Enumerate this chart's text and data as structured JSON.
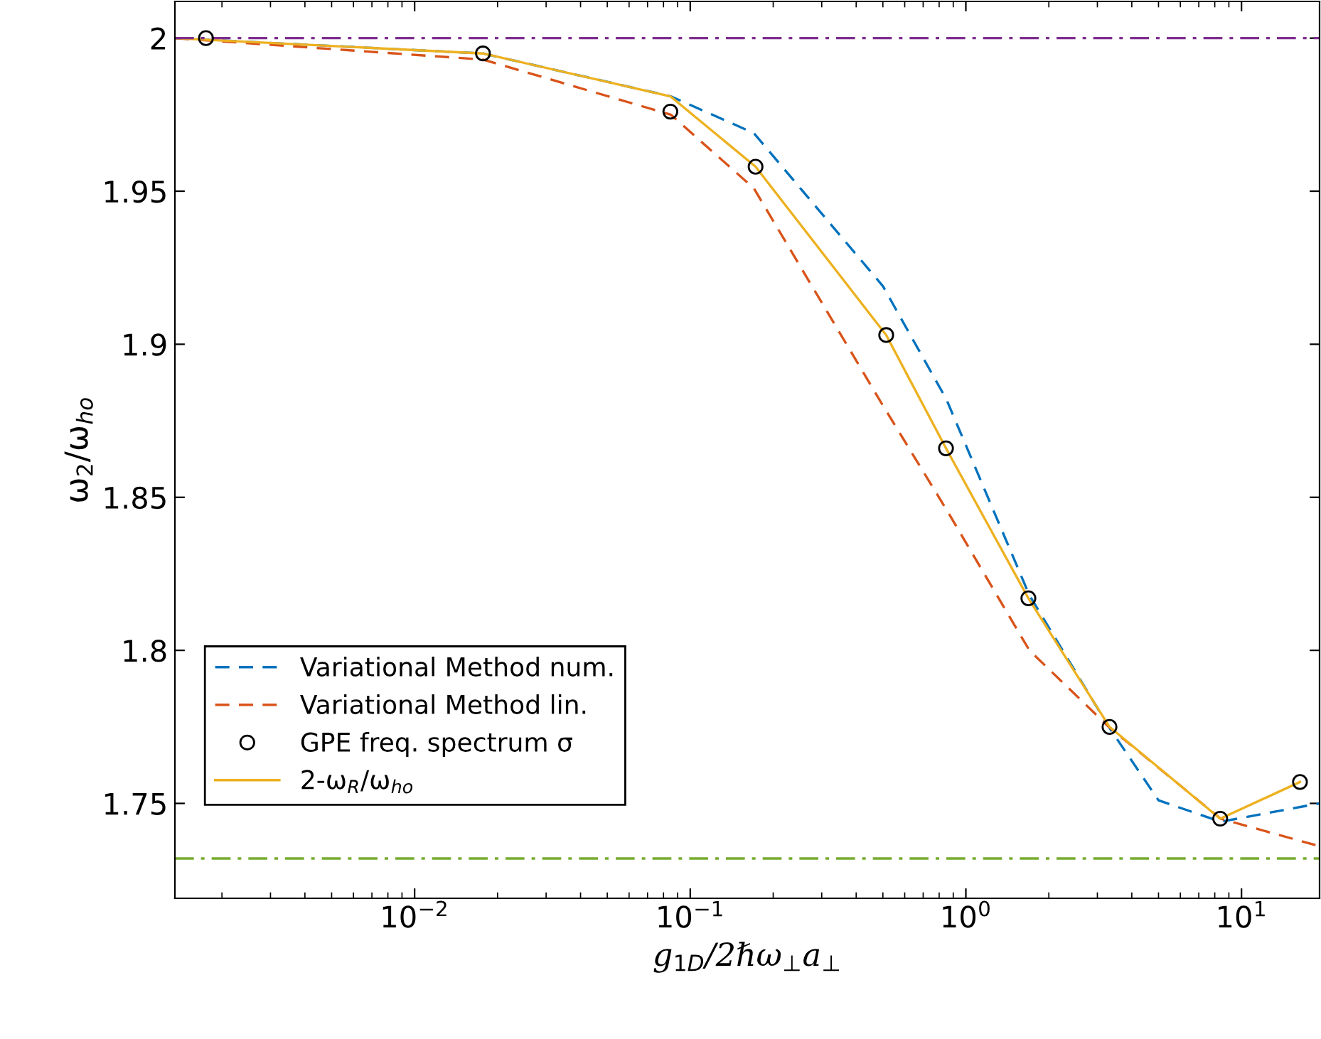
{
  "chart_data": {
    "type": "line",
    "xlabel": "g$_{1D}$/2ℏω$_{⊥}$a$_{⊥}$",
    "ylabel": "ω$_{2}$/ω$_{ho}$",
    "log": "x",
    "xlim": [
      0.00135,
      19.2
    ],
    "xticks": [
      {
        "value": 0.01,
        "label": "10$^{−2}$"
      },
      {
        "value": 0.1,
        "label": "10$^{−1}$"
      },
      {
        "value": 1,
        "label": "10$^{0}$"
      },
      {
        "value": 10,
        "label": "10$^{1}$"
      }
    ],
    "ylim": [
      1.719,
      2.012
    ],
    "yticks": [
      1.75,
      1.8,
      1.85,
      1.9,
      1.95,
      2
    ],
    "grid": false,
    "legend": "bottom left",
    "series": [
      {
        "name": "Variational Method num.",
        "color": "#0072bd",
        "line_style": "dashed",
        "marker": "none",
        "x": [
          0.00135,
          0.0177,
          0.085,
          0.17,
          0.5,
          0.85,
          1.7,
          3.3,
          5.0,
          8.4,
          19.2
        ],
        "values": [
          2.0,
          1.995,
          1.981,
          1.969,
          1.919,
          1.882,
          1.818,
          1.775,
          1.751,
          1.744,
          1.75
        ]
      },
      {
        "name": "Variational Method lin.",
        "color": "#d95319",
        "line_style": "dashed",
        "marker": "none",
        "x": [
          0.00135,
          0.0177,
          0.085,
          0.17,
          0.5,
          0.85,
          1.7,
          3.3,
          8.4,
          19.2
        ],
        "values": [
          2.0,
          1.993,
          1.975,
          1.951,
          1.88,
          1.846,
          1.8,
          1.775,
          1.745,
          1.736
        ]
      },
      {
        "name": "GPE freq. spectrum σ",
        "type": "scatter",
        "color": "#000000",
        "marker": "circle",
        "x": [
          0.00175,
          0.0177,
          0.0847,
          0.1726,
          0.514,
          0.847,
          1.686,
          3.32,
          8.37,
          16.3
        ],
        "values": [
          2.0,
          1.995,
          1.976,
          1.958,
          1.903,
          1.866,
          1.817,
          1.775,
          1.745,
          1.757
        ]
      },
      {
        "name": "2-ω$_{R}$/ω$_{ho}$",
        "color": "#edb120",
        "line_style": "solid",
        "marker": "none",
        "x": [
          0.00135,
          0.0177,
          0.0847,
          0.1726,
          0.514,
          0.847,
          1.686,
          3.32,
          8.37,
          16.3
        ],
        "values": [
          2.0,
          1.995,
          1.981,
          1.958,
          1.903,
          1.866,
          1.817,
          1.775,
          1.745,
          1.757
        ]
      }
    ],
    "ref_lines": [
      {
        "axis": "y",
        "value": 2,
        "color": "#7e2f8e",
        "line_style": "dashdot"
      },
      {
        "axis": "y",
        "value": 1.732,
        "color": "#77ac30",
        "line_style": "dashdot"
      }
    ]
  }
}
